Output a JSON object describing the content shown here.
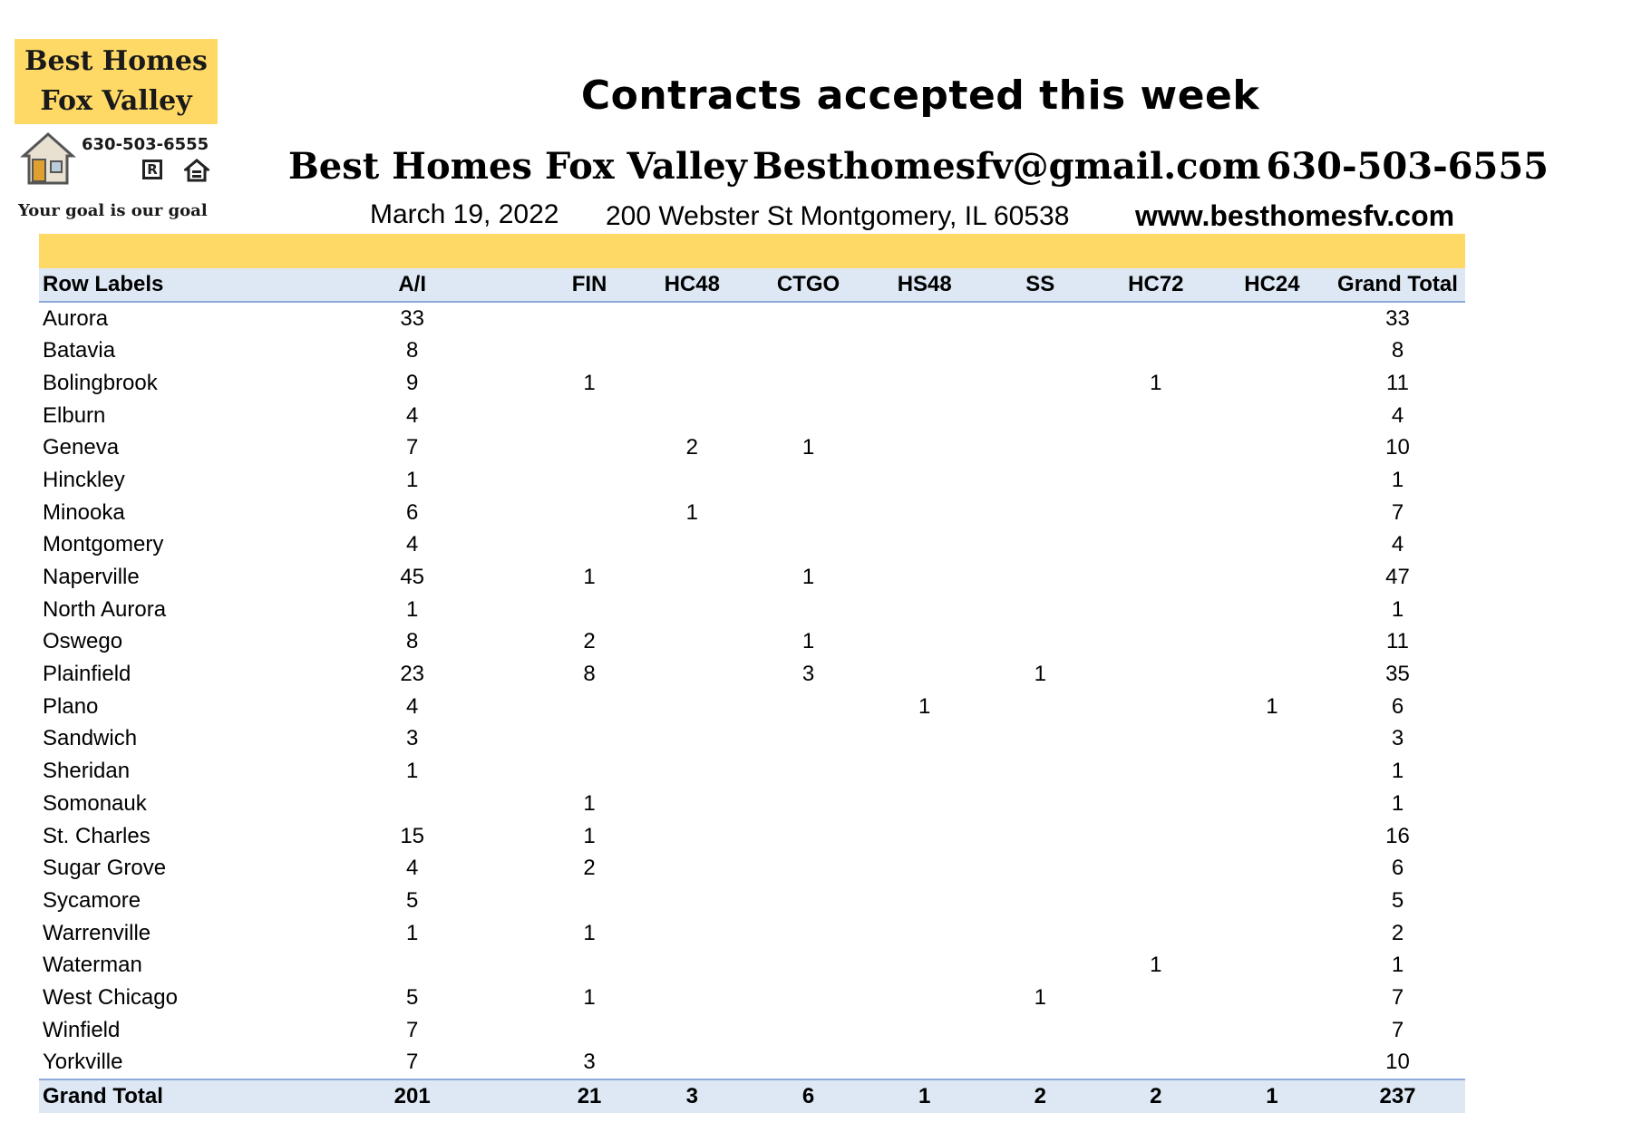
{
  "logo": {
    "line1": "Best Homes",
    "line2": "Fox Valley",
    "phone": "630-503-6555",
    "realtor_mark": "R",
    "tagline": "Your goal is our goal"
  },
  "header": {
    "title": "Contracts accepted this week",
    "company": "Best Homes Fox Valley",
    "email": "Besthomesfv@gmail.com",
    "phone": "630-503-6555",
    "date": "March 19, 2022",
    "address": "200 Webster St Montgomery, IL 60538",
    "website": "www.besthomesfv.com"
  },
  "table": {
    "columns": [
      "Row Labels",
      "A/I",
      "FIN",
      "HC48",
      "CTGO",
      "HS48",
      "SS",
      "HC72",
      "HC24",
      "Grand Total"
    ],
    "rows": [
      [
        "Aurora",
        "33",
        "",
        "",
        "",
        "",
        "",
        "",
        "",
        "33"
      ],
      [
        "Batavia",
        "8",
        "",
        "",
        "",
        "",
        "",
        "",
        "",
        "8"
      ],
      [
        "Bolingbrook",
        "9",
        "1",
        "",
        "",
        "",
        "",
        "1",
        "",
        "11"
      ],
      [
        "Elburn",
        "4",
        "",
        "",
        "",
        "",
        "",
        "",
        "",
        "4"
      ],
      [
        "Geneva",
        "7",
        "",
        "2",
        "1",
        "",
        "",
        "",
        "",
        "10"
      ],
      [
        "Hinckley",
        "1",
        "",
        "",
        "",
        "",
        "",
        "",
        "",
        "1"
      ],
      [
        "Minooka",
        "6",
        "",
        "1",
        "",
        "",
        "",
        "",
        "",
        "7"
      ],
      [
        "Montgomery",
        "4",
        "",
        "",
        "",
        "",
        "",
        "",
        "",
        "4"
      ],
      [
        "Naperville",
        "45",
        "1",
        "",
        "1",
        "",
        "",
        "",
        "",
        "47"
      ],
      [
        "North Aurora",
        "1",
        "",
        "",
        "",
        "",
        "",
        "",
        "",
        "1"
      ],
      [
        "Oswego",
        "8",
        "2",
        "",
        "1",
        "",
        "",
        "",
        "",
        "11"
      ],
      [
        "Plainfield",
        "23",
        "8",
        "",
        "3",
        "",
        "1",
        "",
        "",
        "35"
      ],
      [
        "Plano",
        "4",
        "",
        "",
        "",
        "1",
        "",
        "",
        "1",
        "6"
      ],
      [
        "Sandwich",
        "3",
        "",
        "",
        "",
        "",
        "",
        "",
        "",
        "3"
      ],
      [
        "Sheridan",
        "1",
        "",
        "",
        "",
        "",
        "",
        "",
        "",
        "1"
      ],
      [
        "Somonauk",
        "",
        "1",
        "",
        "",
        "",
        "",
        "",
        "",
        "1"
      ],
      [
        "St. Charles",
        "15",
        "1",
        "",
        "",
        "",
        "",
        "",
        "",
        "16"
      ],
      [
        "Sugar Grove",
        "4",
        "2",
        "",
        "",
        "",
        "",
        "",
        "",
        "6"
      ],
      [
        "Sycamore",
        "5",
        "",
        "",
        "",
        "",
        "",
        "",
        "",
        "5"
      ],
      [
        "Warrenville",
        "1",
        "1",
        "",
        "",
        "",
        "",
        "",
        "",
        "2"
      ],
      [
        "Waterman",
        "",
        "",
        "",
        "",
        "",
        "",
        "1",
        "",
        "1"
      ],
      [
        "West Chicago",
        "5",
        "1",
        "",
        "",
        "",
        "1",
        "",
        "",
        "7"
      ],
      [
        "Winfield",
        "7",
        "",
        "",
        "",
        "",
        "",
        "",
        "",
        "7"
      ],
      [
        "Yorkville",
        "7",
        "3",
        "",
        "",
        "",
        "",
        "",
        "",
        "10"
      ]
    ],
    "total": [
      "Grand Total",
      "201",
      "21",
      "3",
      "6",
      "1",
      "2",
      "2",
      "1",
      "237"
    ]
  }
}
